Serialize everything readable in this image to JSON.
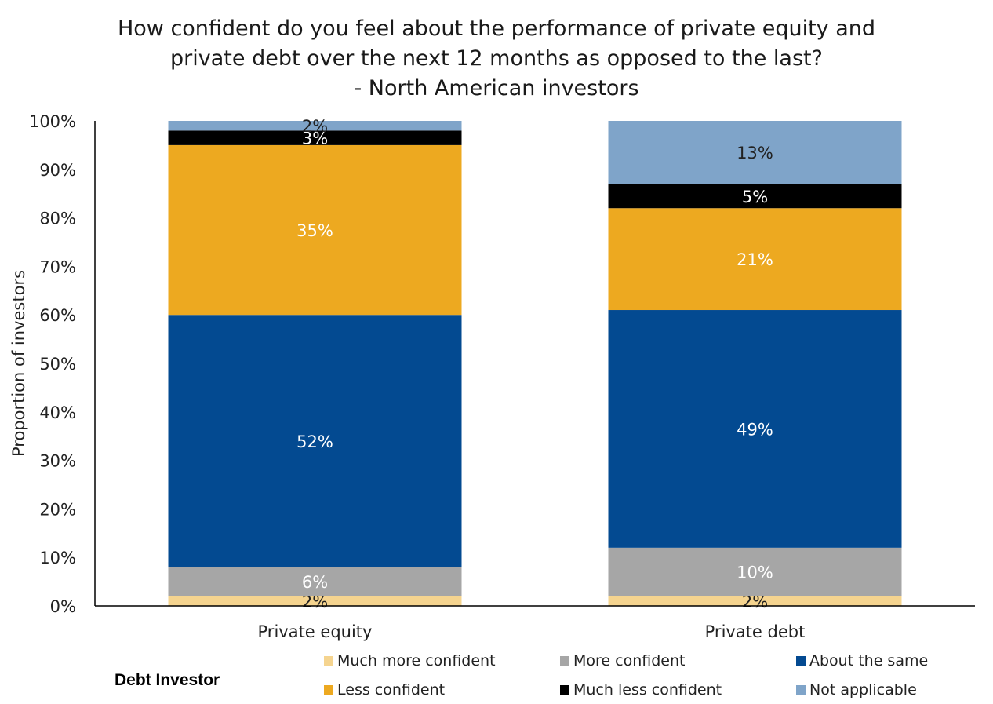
{
  "chart_data": {
    "type": "bar",
    "stacked": true,
    "title_lines": [
      "How confident do you feel about the performance of private equity and",
      "private debt over the next 12 months as opposed to the last?",
      "- North American investors"
    ],
    "xlabel": "",
    "ylabel": "Proportion of investors",
    "ylim": [
      0,
      100
    ],
    "yticks": [
      "0%",
      "10%",
      "20%",
      "30%",
      "40%",
      "50%",
      "60%",
      "70%",
      "80%",
      "90%",
      "100%"
    ],
    "grid": false,
    "legend_position": "bottom",
    "categories": [
      "Private equity",
      "Private debt"
    ],
    "series": [
      {
        "name": "Much more confident",
        "color": "#f5d48f",
        "values": [
          2,
          2
        ],
        "labels": [
          "2%",
          "2%"
        ],
        "label_color": "#222222"
      },
      {
        "name": "More confident",
        "color": "#a6a6a6",
        "values": [
          6,
          10
        ],
        "labels": [
          "6%",
          "10%"
        ],
        "label_color": "#ffffff"
      },
      {
        "name": "About the same",
        "color": "#034a91",
        "values": [
          52,
          49
        ],
        "labels": [
          "52%",
          "49%"
        ],
        "label_color": "#ffffff"
      },
      {
        "name": "Less confident",
        "color": "#eda920",
        "values": [
          35,
          21
        ],
        "labels": [
          "35%",
          "21%"
        ],
        "label_color": "#ffffff"
      },
      {
        "name": "Much less confident",
        "color": "#000000",
        "values": [
          3,
          5
        ],
        "labels": [
          "3%",
          "5%"
        ],
        "label_color": "#ffffff"
      },
      {
        "name": "Not applicable",
        "color": "#7fa4c9",
        "values": [
          2,
          13
        ],
        "labels": [
          "2%",
          "13%"
        ],
        "label_color": "#222222"
      }
    ]
  },
  "footer_note": "Debt Investor"
}
